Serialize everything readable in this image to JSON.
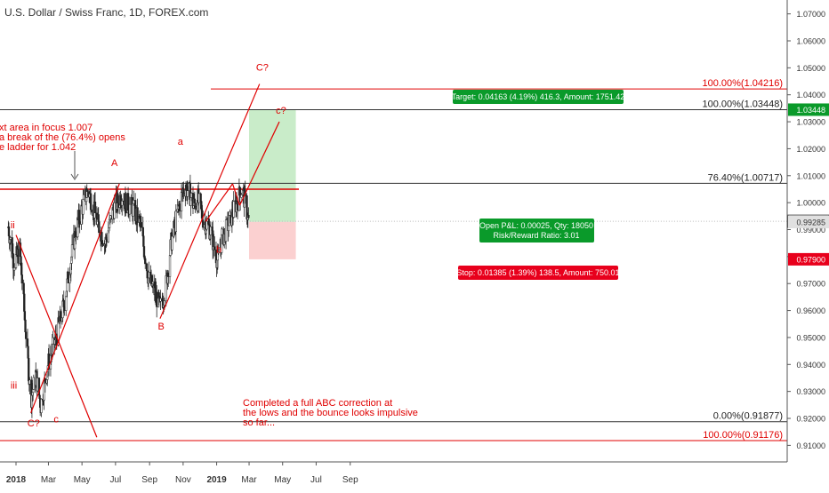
{
  "title": "U.S. Dollar / Swiss Franc, 1D, FOREX.com",
  "colors": {
    "up": "#26a69a",
    "down": "#ef5350",
    "candle": "#222222",
    "annotation": "#e00000",
    "fib": "#333333",
    "target_fill": "#c9ecc9",
    "stop_fill": "#fbd0d0",
    "price_badge_bg": "#ffffff",
    "target_badge": "#0a9a2a",
    "stop_badge": "#e8001c"
  },
  "chart_data": {
    "type": "candlestick",
    "instrument": "USDCHF",
    "ylim": [
      0.9065,
      1.0735
    ],
    "y_ticks": [
      "1.07000",
      "1.06000",
      "1.05000",
      "1.04000",
      "1.03000",
      "1.02000",
      "1.01000",
      "1.00000",
      "0.99000",
      "0.98000",
      "0.97000",
      "0.96000",
      "0.95000",
      "0.94000",
      "0.93000",
      "0.92000",
      "0.91000"
    ],
    "x_ticks": [
      "2018",
      "Mar",
      "May",
      "Jul",
      "Sep",
      "Nov",
      "2019",
      "Mar",
      "May",
      "Jul",
      "Sep"
    ],
    "price_path": [
      [
        "2017-12-18",
        0.991
      ],
      [
        "2017-12-28",
        0.978
      ],
      [
        "2018-01-08",
        0.982
      ],
      [
        "2018-01-22",
        0.943
      ],
      [
        "2018-01-28",
        0.927
      ],
      [
        "2018-02-06",
        0.936
      ],
      [
        "2018-02-15",
        0.925
      ],
      [
        "2018-02-28",
        0.94
      ],
      [
        "2018-03-15",
        0.95
      ],
      [
        "2018-03-29",
        0.962
      ],
      [
        "2018-04-08",
        0.975
      ],
      [
        "2018-04-20",
        0.99
      ],
      [
        "2018-05-04",
        1.0
      ],
      [
        "2018-05-12",
        1.005
      ],
      [
        "2018-05-30",
        0.992
      ],
      [
        "2018-06-12",
        0.985
      ],
      [
        "2018-06-28",
        0.998
      ],
      [
        "2018-07-12",
        1.003
      ],
      [
        "2018-07-20",
        1.0
      ],
      [
        "2018-08-01",
        0.998
      ],
      [
        "2018-08-15",
        0.992
      ],
      [
        "2018-08-30",
        0.972
      ],
      [
        "2018-09-10",
        0.967
      ],
      [
        "2018-09-20",
        0.961
      ],
      [
        "2018-09-30",
        0.968
      ],
      [
        "2018-10-10",
        0.985
      ],
      [
        "2018-10-25",
        0.999
      ],
      [
        "2018-11-03",
        1.006
      ],
      [
        "2018-11-12",
        1.004
      ],
      [
        "2018-11-20",
        0.999
      ],
      [
        "2018-11-28",
        1.001
      ],
      [
        "2018-12-07",
        0.994
      ],
      [
        "2018-12-20",
        0.99
      ],
      [
        "2019-01-03",
        0.978
      ],
      [
        "2019-01-10",
        0.986
      ],
      [
        "2019-01-25",
        0.993
      ],
      [
        "2019-02-06",
        1.0
      ],
      [
        "2019-02-16",
        1.005
      ],
      [
        "2019-02-24",
        0.998
      ],
      [
        "2019-02-28",
        0.9931
      ]
    ],
    "levels": [
      {
        "label": "100.00%(1.04216)",
        "price": 1.04216
      },
      {
        "label": "100.00%(1.03448)",
        "price": 1.03448
      },
      {
        "label": "76.40%(1.00717)",
        "price": 1.00717
      },
      {
        "label": "0.00%(0.91877)",
        "price": 0.91877
      },
      {
        "label": "100.00%(0.91176)",
        "price": 0.91176
      }
    ],
    "resistance_price": 1.005,
    "current_price": "0.99310",
    "entry_price": "0.99285",
    "stop_price": "0.97900",
    "target_price": "1.03448",
    "position": {
      "target_text": "Target: 0.04163 (4.19%) 416.3, Amount: 1751.42",
      "open_pnl_text": "Open P&L: 0.00025, Qty: 18050",
      "rr_text": "Risk/Reward Ratio: 3.01",
      "stop_text": "Stop: 0.01385 (1.39%) 138.5, Amount: 750.01",
      "start": "2019-03-01",
      "end": "2019-05-25"
    },
    "wave_labels": [
      {
        "text": "ii",
        "date": "2017-12-26",
        "price": 0.9905
      },
      {
        "text": "iii",
        "date": "2017-12-28",
        "price": 0.931
      },
      {
        "text": "C?",
        "date": "2018-02-02",
        "price": 0.917
      },
      {
        "text": "c",
        "date": "2018-03-15",
        "price": 0.9185
      },
      {
        "text": "A",
        "date": "2018-06-29",
        "price": 1.0135
      },
      {
        "text": "B",
        "date": "2018-09-22",
        "price": 0.953
      },
      {
        "text": "a",
        "date": "2018-10-27",
        "price": 1.0215
      },
      {
        "text": "b",
        "date": "2019-01-05",
        "price": 0.9815
      },
      {
        "text": "C?",
        "date": "2019-03-25",
        "price": 1.049
      },
      {
        "text": "c?",
        "date": "2019-04-28",
        "price": 1.033
      }
    ],
    "annotations": {
      "note_top": [
        "xt area in focus 1.007",
        "a break of the (76.4%) opens",
        "e ladder for 1.042"
      ],
      "note_bottom": [
        "Completed a full ABC correction at",
        "the lows and the bounce looks impulsive",
        "so far..."
      ]
    }
  }
}
